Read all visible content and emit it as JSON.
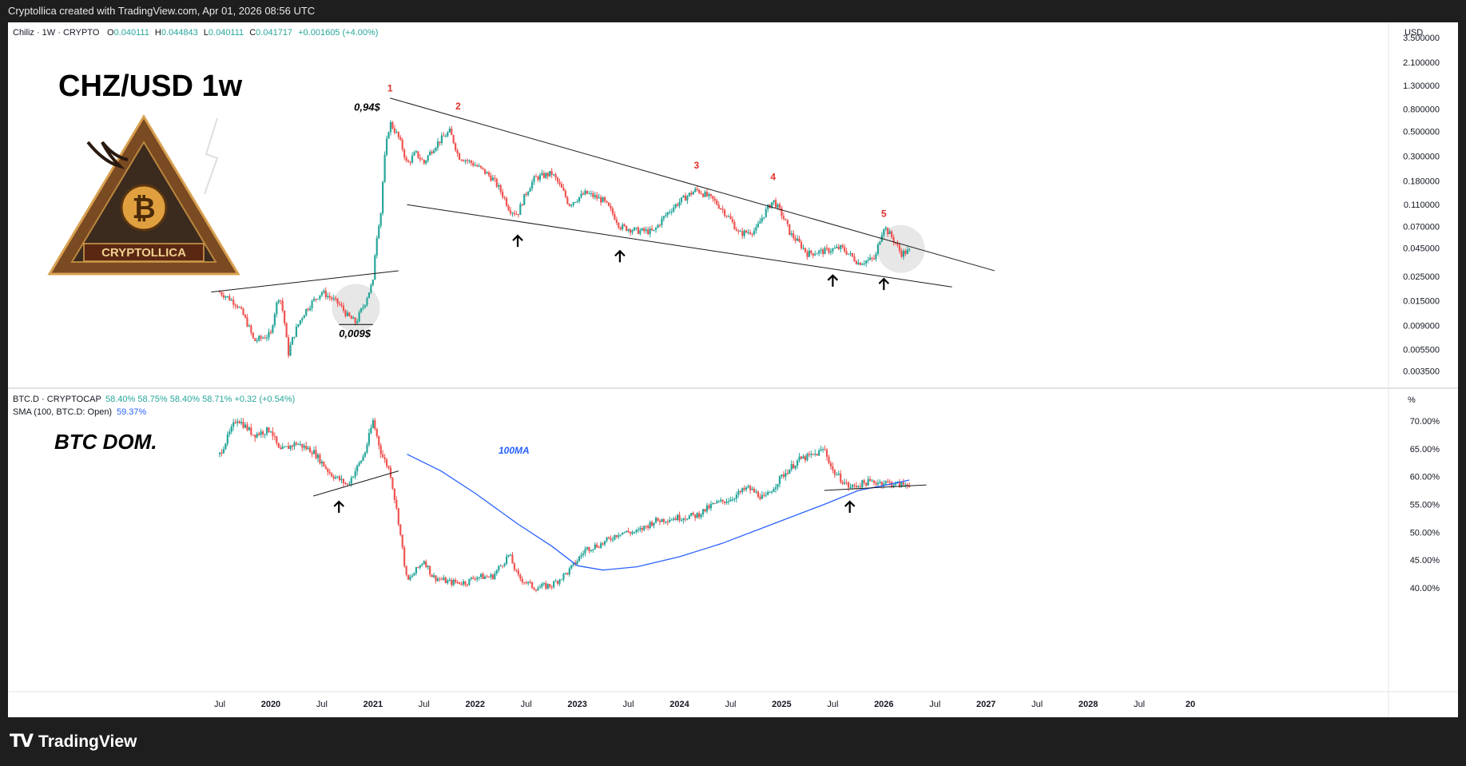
{
  "header": {
    "attribution": "Cryptollica created with TradingView.com, Apr 01, 2026 08:56 UTC"
  },
  "footer": {
    "brand": "TradingView",
    "brand_icon": "tradingview-logo-icon"
  },
  "colors": {
    "up": "#26a69a",
    "down": "#ef5350",
    "ma": "#2962ff",
    "wave_label": "#e0302a",
    "text": "#131722"
  },
  "top_pane": {
    "symbol_line": "Chiliz · 1W · CRYPTO",
    "ohlc": {
      "o_label": "O",
      "o": "0.040111",
      "h_label": "H",
      "h": "0.044843",
      "l_label": "L",
      "l": "0.040111",
      "c_label": "C",
      "c": "0.041717",
      "change": "+0.001605 (+4.00%)"
    },
    "currency": "USD",
    "big_title": "CHZ/USD 1w",
    "logo_text": "CRYPTOLLICA",
    "price_axis": [
      "3.500000",
      "2.100000",
      "1.300000",
      "0.800000",
      "0.500000",
      "0.300000",
      "0.180000",
      "0.110000",
      "0.070000",
      "0.045000",
      "0.025000",
      "0.015000",
      "0.009000",
      "0.005500",
      "0.003500"
    ],
    "annotations": {
      "high": "0,94$",
      "low": "0,009$"
    },
    "wave_labels": [
      "1",
      "2",
      "3",
      "4",
      "5"
    ]
  },
  "bottom_pane": {
    "symbol_line": "BTC.D · CRYPTOCAP",
    "values": "58.40%  58.75%  58.40%  58.71%  +0.32 (+0.54%)",
    "sma_label": "SMA (100, BTC.D: Open)",
    "sma_value": "59.37%",
    "unit": "%",
    "big_title": "BTC DOM.",
    "ma_annotation": "100MA",
    "percent_axis": [
      "70.00%",
      "65.00%",
      "60.00%",
      "55.00%",
      "50.00%",
      "45.00%",
      "40.00%"
    ]
  },
  "time_axis": [
    "Jul",
    "2020",
    "Jul",
    "2021",
    "Jul",
    "2022",
    "Jul",
    "2023",
    "Jul",
    "2024",
    "Jul",
    "2025",
    "Jul",
    "2026",
    "Jul",
    "2027",
    "Jul",
    "2028",
    "Jul",
    "20"
  ],
  "chart_data": [
    {
      "type": "candlestick",
      "title": "Chiliz · 1W · CRYPTO",
      "scale": "log",
      "ylim": [
        0.003,
        4.2
      ],
      "x_label_range": [
        "2019-07",
        "2029-01"
      ],
      "series": [
        {
          "name": "CHZ/USD",
          "points": [
            [
              "2019-07",
              0.018
            ],
            [
              "2019-09",
              0.014
            ],
            [
              "2019-11",
              0.0065
            ],
            [
              "2020-01",
              0.0075
            ],
            [
              "2020-02",
              0.017
            ],
            [
              "2020-03",
              0.0048
            ],
            [
              "2020-05",
              0.012
            ],
            [
              "2020-07",
              0.018
            ],
            [
              "2020-09",
              0.014
            ],
            [
              "2020-10",
              0.011
            ],
            [
              "2020-11",
              0.0095
            ],
            [
              "2020-12",
              0.014
            ],
            [
              "2021-01",
              0.022
            ],
            [
              "2021-02",
              0.1
            ],
            [
              "2021-03",
              0.6
            ],
            [
              "2021-04",
              0.44
            ],
            [
              "2021-05",
              0.25
            ],
            [
              "2021-06",
              0.32
            ],
            [
              "2021-07",
              0.26
            ],
            [
              "2021-08",
              0.35
            ],
            [
              "2021-10",
              0.5
            ],
            [
              "2021-11",
              0.3
            ],
            [
              "2022-01",
              0.25
            ],
            [
              "2022-03",
              0.19
            ],
            [
              "2022-05",
              0.1
            ],
            [
              "2022-06",
              0.09
            ],
            [
              "2022-08",
              0.19
            ],
            [
              "2022-10",
              0.21
            ],
            [
              "2022-12",
              0.11
            ],
            [
              "2023-02",
              0.14
            ],
            [
              "2023-04",
              0.12
            ],
            [
              "2023-06",
              0.07
            ],
            [
              "2023-08",
              0.064
            ],
            [
              "2023-10",
              0.063
            ],
            [
              "2023-12",
              0.1
            ],
            [
              "2024-03",
              0.15
            ],
            [
              "2024-05",
              0.12
            ],
            [
              "2024-08",
              0.06
            ],
            [
              "2024-10",
              0.065
            ],
            [
              "2024-12",
              0.12
            ],
            [
              "2025-02",
              0.06
            ],
            [
              "2025-04",
              0.04
            ],
            [
              "2025-06",
              0.042
            ],
            [
              "2025-08",
              0.045
            ],
            [
              "2025-10",
              0.033
            ],
            [
              "2025-12",
              0.036
            ],
            [
              "2026-01",
              0.07
            ],
            [
              "2026-03",
              0.04
            ],
            [
              "2026-04",
              0.042
            ]
          ]
        }
      ],
      "trendlines": [
        {
          "name": "upper",
          "points": [
            [
              "2021-03",
              1.0
            ],
            [
              "2027-02",
              0.028
            ]
          ]
        },
        {
          "name": "lower",
          "points": [
            [
              "2021-05",
              0.11
            ],
            [
              "2026-09",
              0.02
            ]
          ]
        },
        {
          "name": "base",
          "points": [
            [
              "2019-06",
              0.018
            ],
            [
              "2021-04",
              0.028
            ]
          ]
        }
      ],
      "wave_points": [
        {
          "label": "1",
          "date": "2021-03",
          "value": 0.94
        },
        {
          "label": "2",
          "date": "2021-11",
          "value": 0.65
        },
        {
          "label": "3",
          "date": "2024-03",
          "value": 0.19
        },
        {
          "label": "4",
          "date": "2024-12",
          "value": 0.15
        },
        {
          "label": "5",
          "date": "2026-01",
          "value": 0.07
        }
      ]
    },
    {
      "type": "line",
      "title": "BTC.D · CRYPTOCAP",
      "ylim": [
        38,
        73
      ],
      "x_label_range": [
        "2019-07",
        "2029-01"
      ],
      "series": [
        {
          "name": "BTC.D",
          "points": [
            [
              "2019-07",
              64
            ],
            [
              "2019-09",
              70.5
            ],
            [
              "2019-11",
              67.5
            ],
            [
              "2020-01",
              68.5
            ],
            [
              "2020-02",
              64.5
            ],
            [
              "2020-04",
              66
            ],
            [
              "2020-06",
              64.5
            ],
            [
              "2020-08",
              60.5
            ],
            [
              "2020-10",
              58.5
            ],
            [
              "2020-12",
              64
            ],
            [
              "2021-01",
              70
            ],
            [
              "2021-02",
              64
            ],
            [
              "2021-03",
              61
            ],
            [
              "2021-04",
              52
            ],
            [
              "2021-05",
              41
            ],
            [
              "2021-07",
              45
            ],
            [
              "2021-08",
              42
            ],
            [
              "2021-10",
              41
            ],
            [
              "2021-12",
              41
            ],
            [
              "2022-01",
              42
            ],
            [
              "2022-03",
              42
            ],
            [
              "2022-05",
              46
            ],
            [
              "2022-06",
              42
            ],
            [
              "2022-08",
              40
            ],
            [
              "2022-10",
              40.5
            ],
            [
              "2022-12",
              43
            ],
            [
              "2023-02",
              47
            ],
            [
              "2023-04",
              48
            ],
            [
              "2023-06",
              50
            ],
            [
              "2023-08",
              50
            ],
            [
              "2023-10",
              52
            ],
            [
              "2023-12",
              52.5
            ],
            [
              "2024-03",
              53
            ],
            [
              "2024-05",
              55
            ],
            [
              "2024-07",
              56
            ],
            [
              "2024-09",
              58
            ],
            [
              "2024-11",
              56
            ],
            [
              "2025-01",
              60
            ],
            [
              "2025-03",
              63
            ],
            [
              "2025-05",
              64
            ],
            [
              "2025-06",
              65
            ],
            [
              "2025-07",
              61
            ],
            [
              "2025-09",
              58
            ],
            [
              "2025-11",
              59
            ],
            [
              "2026-01",
              59
            ],
            [
              "2026-03",
              58.5
            ],
            [
              "2026-04",
              58.71
            ]
          ]
        },
        {
          "name": "SMA (100, BTC.D: Open)",
          "points": [
            [
              "2021-05",
              64
            ],
            [
              "2021-09",
              61
            ],
            [
              "2022-01",
              57
            ],
            [
              "2022-06",
              51.5
            ],
            [
              "2022-10",
              47.5
            ],
            [
              "2023-01",
              44
            ],
            [
              "2023-04",
              43.2
            ],
            [
              "2023-08",
              43.8
            ],
            [
              "2024-01",
              45.6
            ],
            [
              "2024-06",
              48
            ],
            [
              "2024-12",
              51.5
            ],
            [
              "2025-06",
              55
            ],
            [
              "2025-10",
              57.5
            ],
            [
              "2026-01",
              58.4
            ],
            [
              "2026-04",
              59.37
            ]
          ]
        }
      ],
      "trendlines": [
        {
          "name": "rising",
          "points": [
            [
              "2020-06",
              56.5
            ],
            [
              "2021-04",
              61
            ]
          ]
        },
        {
          "name": "flat",
          "points": [
            [
              "2025-06",
              57.5
            ],
            [
              "2026-06",
              58.5
            ]
          ]
        }
      ]
    }
  ]
}
